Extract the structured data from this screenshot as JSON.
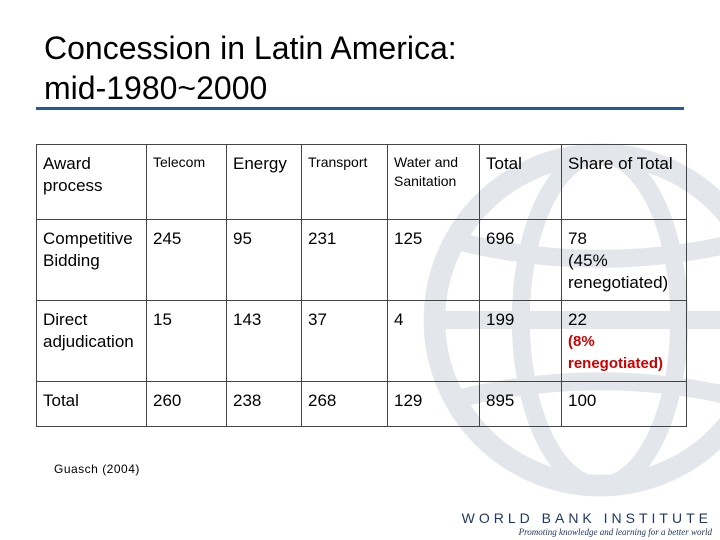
{
  "title_line1": "Concession in Latin America:",
  "title_line2": "mid-1980~2000",
  "table": {
    "headers": [
      "Award process",
      "Telecom",
      "Energy",
      "Transport",
      "Water and Sanitation",
      "Total",
      "Share of Total"
    ],
    "rows": [
      {
        "label": "Competitive Bidding",
        "telecom": "245",
        "energy": "95",
        "transport": "231",
        "water": "125",
        "total": "696",
        "share": "78",
        "share_note": "(45% renegotiated)"
      },
      {
        "label": "Direct adjudication",
        "telecom": "15",
        "energy": "143",
        "transport": "37",
        "water": "4",
        "total": "199",
        "share": "22",
        "share_note": "(8% renegotiated)"
      },
      {
        "label": "Total",
        "telecom": "260",
        "energy": "238",
        "transport": "268",
        "water": "129",
        "total": "895",
        "share": "100"
      }
    ]
  },
  "source": "Guasch (2004)",
  "brand": {
    "name": "WORLD BANK INSTITUTE",
    "tagline": "Promoting knowledge and learning for a better world"
  },
  "colors": {
    "rule": "#2f5597",
    "highlight": "#cc0000",
    "brand": "#1f3864"
  }
}
